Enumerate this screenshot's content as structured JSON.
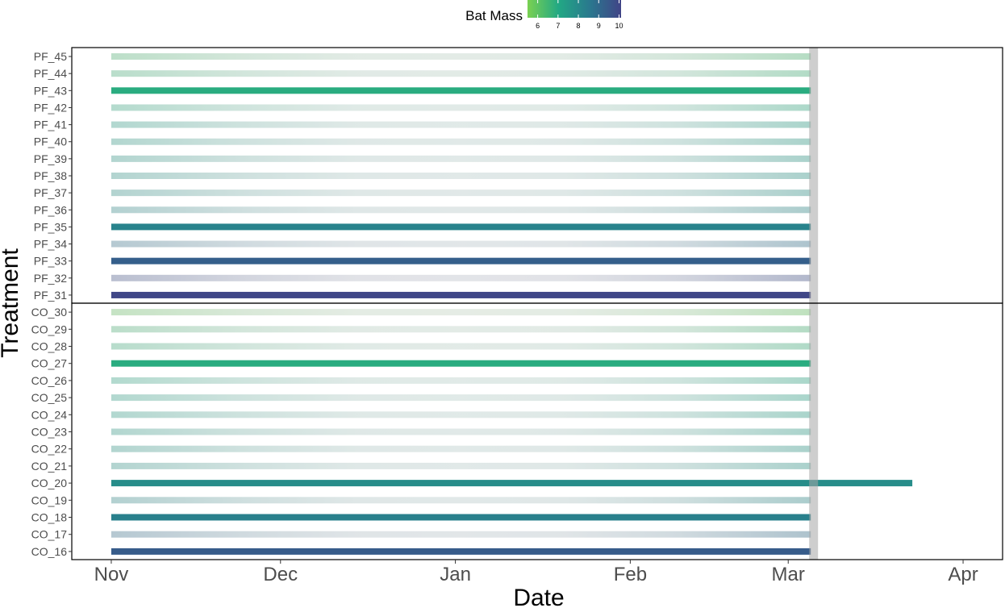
{
  "chart_data": {
    "type": "timeline",
    "xlabel": "Date",
    "ylabel": "Treatment",
    "x_ticks": [
      {
        "label": "Nov",
        "date": "2000-11-01"
      },
      {
        "label": "Dec",
        "date": "2000-12-01"
      },
      {
        "label": "Jan",
        "date": "2001-01-01"
      },
      {
        "label": "Feb",
        "date": "2001-02-01"
      },
      {
        "label": "Mar",
        "date": "2001-03-01"
      },
      {
        "label": "Apr",
        "date": "2001-04-01"
      }
    ],
    "xlim": [
      "2000-10-25",
      "2001-04-08"
    ],
    "reference_band": {
      "start": "2001-03-05",
      "end": "2001-03-06"
    },
    "legend": {
      "title": "Bat Mass",
      "position": "top",
      "ticks": [
        6,
        7,
        8,
        9,
        10
      ],
      "range": [
        5.5,
        10.1
      ],
      "palette": [
        "#7ad151",
        "#22a884",
        "#2a788e",
        "#414487"
      ]
    },
    "panels": [
      {
        "name": "PF",
        "rows": [
          {
            "id": "PF_45",
            "start": "2000-11-01",
            "end": "2001-03-05",
            "mass": 6.4,
            "highlighted": false
          },
          {
            "id": "PF_44",
            "start": "2000-11-01",
            "end": "2001-03-05",
            "mass": 6.6,
            "highlighted": false
          },
          {
            "id": "PF_43",
            "start": "2000-11-01",
            "end": "2001-03-05",
            "mass": 6.9,
            "highlighted": true
          },
          {
            "id": "PF_42",
            "start": "2000-11-01",
            "end": "2001-03-05",
            "mass": 6.9,
            "highlighted": false
          },
          {
            "id": "PF_41",
            "start": "2000-11-01",
            "end": "2001-03-05",
            "mass": 7.3,
            "highlighted": false
          },
          {
            "id": "PF_40",
            "start": "2000-11-01",
            "end": "2001-03-05",
            "mass": 7.4,
            "highlighted": false
          },
          {
            "id": "PF_39",
            "start": "2000-11-01",
            "end": "2001-03-05",
            "mass": 7.5,
            "highlighted": false
          },
          {
            "id": "PF_38",
            "start": "2000-11-01",
            "end": "2001-03-05",
            "mass": 7.6,
            "highlighted": false
          },
          {
            "id": "PF_37",
            "start": "2000-11-01",
            "end": "2001-03-05",
            "mass": 7.7,
            "highlighted": false
          },
          {
            "id": "PF_36",
            "start": "2000-11-01",
            "end": "2001-03-05",
            "mass": 8.0,
            "highlighted": false
          },
          {
            "id": "PF_35",
            "start": "2000-11-01",
            "end": "2001-03-05",
            "mass": 8.2,
            "highlighted": true
          },
          {
            "id": "PF_34",
            "start": "2000-11-01",
            "end": "2001-03-05",
            "mass": 8.8,
            "highlighted": false
          },
          {
            "id": "PF_33",
            "start": "2000-11-01",
            "end": "2001-03-05",
            "mass": 9.3,
            "highlighted": true
          },
          {
            "id": "PF_32",
            "start": "2000-11-01",
            "end": "2001-03-05",
            "mass": 9.8,
            "highlighted": false
          },
          {
            "id": "PF_31",
            "start": "2000-11-01",
            "end": "2001-03-05",
            "mass": 10.0,
            "highlighted": true
          }
        ]
      },
      {
        "name": "CO",
        "rows": [
          {
            "id": "CO_30",
            "start": "2000-11-01",
            "end": "2001-03-05",
            "mass": 5.9,
            "highlighted": false
          },
          {
            "id": "CO_29",
            "start": "2000-11-01",
            "end": "2001-03-05",
            "mass": 6.5,
            "highlighted": false
          },
          {
            "id": "CO_28",
            "start": "2000-11-01",
            "end": "2001-03-05",
            "mass": 6.7,
            "highlighted": false
          },
          {
            "id": "CO_27",
            "start": "2000-11-01",
            "end": "2001-03-05",
            "mass": 6.9,
            "highlighted": true
          },
          {
            "id": "CO_26",
            "start": "2000-11-01",
            "end": "2001-03-05",
            "mass": 7.0,
            "highlighted": false
          },
          {
            "id": "CO_25",
            "start": "2000-11-01",
            "end": "2001-03-05",
            "mass": 7.2,
            "highlighted": false
          },
          {
            "id": "CO_24",
            "start": "2000-11-01",
            "end": "2001-03-05",
            "mass": 7.3,
            "highlighted": false
          },
          {
            "id": "CO_23",
            "start": "2000-11-01",
            "end": "2001-03-05",
            "mass": 7.4,
            "highlighted": false
          },
          {
            "id": "CO_22",
            "start": "2000-11-01",
            "end": "2001-03-05",
            "mass": 7.5,
            "highlighted": false
          },
          {
            "id": "CO_21",
            "start": "2000-11-01",
            "end": "2001-03-05",
            "mass": 7.6,
            "highlighted": false
          },
          {
            "id": "CO_20",
            "start": "2000-11-01",
            "end": "2001-03-23",
            "mass": 7.9,
            "highlighted": true
          },
          {
            "id": "CO_19",
            "start": "2000-11-01",
            "end": "2001-03-05",
            "mass": 8.0,
            "highlighted": false
          },
          {
            "id": "CO_18",
            "start": "2000-11-01",
            "end": "2001-03-05",
            "mass": 8.3,
            "highlighted": true
          },
          {
            "id": "CO_17",
            "start": "2000-11-01",
            "end": "2001-03-05",
            "mass": 8.9,
            "highlighted": false
          },
          {
            "id": "CO_16",
            "start": "2000-11-01",
            "end": "2001-03-05",
            "mass": 9.4,
            "highlighted": true
          }
        ]
      }
    ]
  }
}
